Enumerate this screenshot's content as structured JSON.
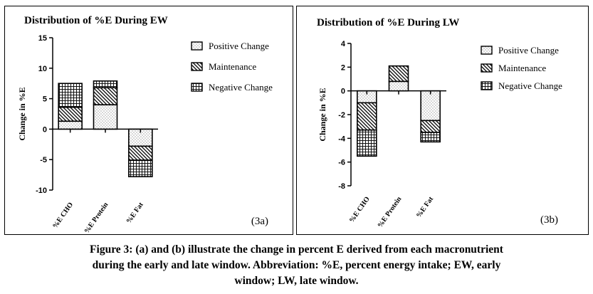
{
  "chart_data": [
    {
      "type": "bar",
      "stacked": true,
      "title": "Distribution of %E During EW",
      "ylabel": "Change in %E",
      "xlabel": "",
      "categories": [
        "%E CHO",
        "%E Protein",
        "%E Fat"
      ],
      "ylim": [
        -10,
        15
      ],
      "yticks": [
        -10,
        -5,
        0,
        5,
        10,
        15
      ],
      "grid": false,
      "legend": "top-right",
      "tag": "(3a)",
      "series": [
        {
          "name": "Positive Change",
          "pattern": "dots",
          "values": [
            1.3,
            4.0,
            -2.8
          ]
        },
        {
          "name": "Maintenance",
          "pattern": "diagonal",
          "values": [
            2.3,
            2.8,
            -2.3
          ]
        },
        {
          "name": "Negative Change",
          "pattern": "grid",
          "values": [
            3.9,
            1.1,
            -2.7
          ]
        }
      ]
    },
    {
      "type": "bar",
      "stacked": true,
      "title": "Distribution of %E During LW",
      "ylabel": "Change in %E",
      "xlabel": "",
      "categories": [
        "%E CHO",
        "%E Protein",
        "%E Fat"
      ],
      "ylim": [
        -8,
        4
      ],
      "yticks": [
        -8,
        -6,
        -4,
        -2,
        0,
        2,
        4
      ],
      "grid": false,
      "legend": "top-right",
      "tag": "(3b)",
      "series": [
        {
          "name": "Positive Change",
          "pattern": "dots",
          "values": [
            -1.0,
            0.8,
            -2.5
          ]
        },
        {
          "name": "Maintenance",
          "pattern": "diagonal",
          "values": [
            -2.3,
            1.3,
            -1.0
          ]
        },
        {
          "name": "Negative Change",
          "pattern": "grid",
          "values": [
            -2.2,
            0,
            -0.8
          ]
        }
      ]
    }
  ],
  "caption": {
    "line1": "Figure 3: (a) and (b) illustrate the change in percent E derived from each macronutrient",
    "line2": "during the early and late window. Abbreviation: %E, percent energy intake; EW, early",
    "line3": "window; LW, late window."
  }
}
